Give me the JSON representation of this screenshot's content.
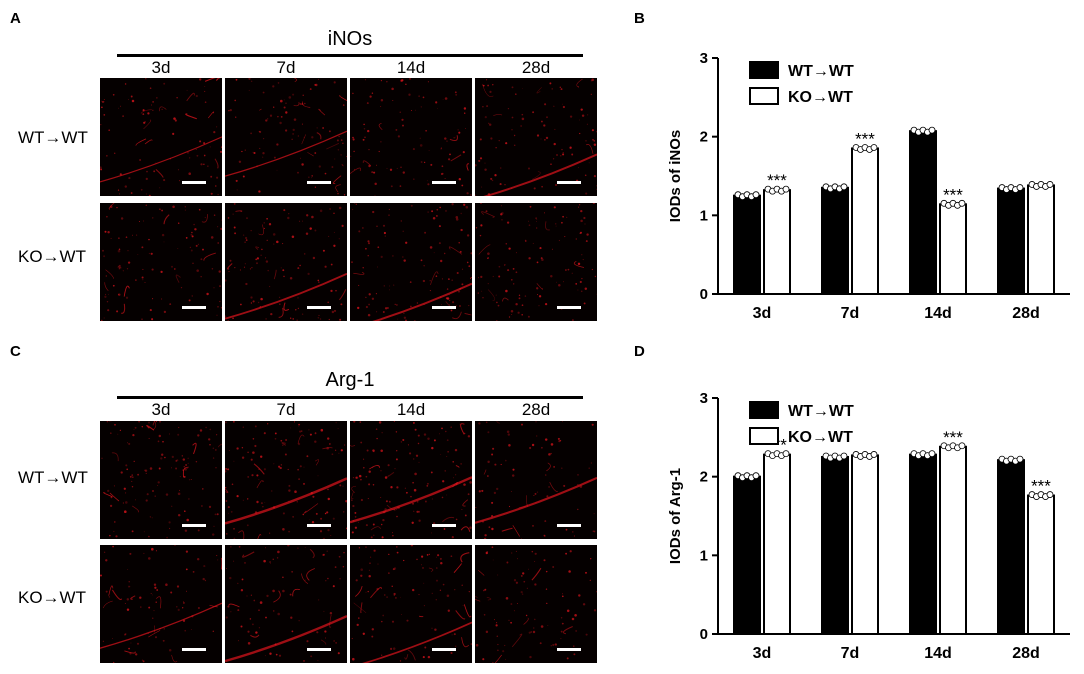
{
  "panels": {
    "A": "A",
    "B": "B",
    "C": "C",
    "D": "D"
  },
  "image_panels": [
    {
      "letter": "A",
      "title": "iNOs",
      "columns": [
        "3d",
        "7d",
        "14d",
        "28d"
      ],
      "rows": [
        "WT→WT",
        "KO→WT"
      ]
    },
    {
      "letter": "C",
      "title": "Arg-1",
      "columns": [
        "3d",
        "7d",
        "14d",
        "28d"
      ],
      "rows": [
        "WT→WT",
        "KO→WT"
      ]
    }
  ],
  "colors": {
    "wt_bar": "#000000",
    "ko_bar": "#ffffff",
    "micro_bg": "#050000",
    "micro_signal": "#e0141c",
    "scale_bar": "#ffffff"
  },
  "chart_data": [
    {
      "type": "bar",
      "panel": "B",
      "categories": [
        "3d",
        "7d",
        "14d",
        "28d"
      ],
      "ylabel": "IODs of iNOs",
      "ylim": [
        0,
        3
      ],
      "yticks": [
        0,
        1,
        2,
        3
      ],
      "legend_position": "top-left",
      "series": [
        {
          "name": "WT→WT",
          "values": [
            1.25,
            1.35,
            2.07,
            1.34
          ]
        },
        {
          "name": "KO→WT",
          "values": [
            1.32,
            1.85,
            1.14,
            1.38
          ]
        }
      ],
      "annotations": [
        {
          "category": "3d",
          "series": "KO→WT",
          "text": "***"
        },
        {
          "category": "7d",
          "series": "KO→WT",
          "text": "***"
        },
        {
          "category": "14d",
          "series": "KO→WT",
          "text": "***"
        }
      ]
    },
    {
      "type": "bar",
      "panel": "D",
      "categories": [
        "3d",
        "7d",
        "14d",
        "28d"
      ],
      "ylabel": "IODs of Arg-1",
      "ylim": [
        0,
        3
      ],
      "yticks": [
        0,
        1,
        2,
        3
      ],
      "legend_position": "top-left",
      "series": [
        {
          "name": "WT→WT",
          "values": [
            2.0,
            2.25,
            2.28,
            2.21
          ]
        },
        {
          "name": "KO→WT",
          "values": [
            2.28,
            2.27,
            2.38,
            1.76
          ]
        }
      ],
      "annotations": [
        {
          "category": "3d",
          "series": "KO→WT",
          "text": "***"
        },
        {
          "category": "14d",
          "series": "KO→WT",
          "text": "***"
        },
        {
          "category": "28d",
          "series": "KO→WT",
          "text": "***"
        }
      ]
    }
  ]
}
